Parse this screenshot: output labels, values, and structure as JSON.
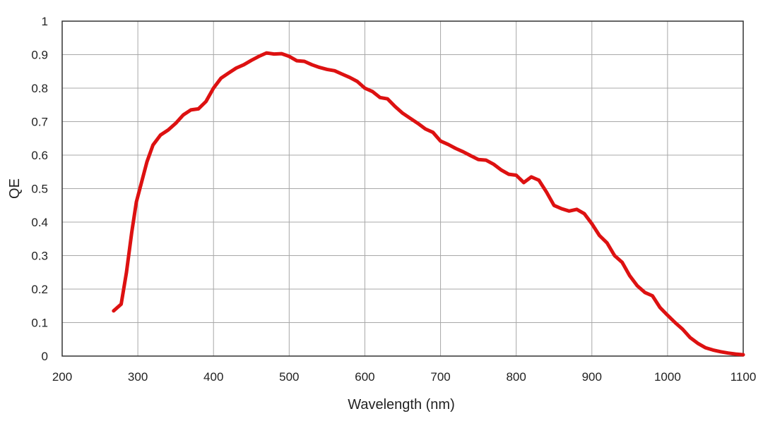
{
  "chart_data": {
    "type": "line",
    "title": "",
    "xlabel": "Wavelength (nm)",
    "ylabel": "QE",
    "xlim": [
      200,
      1100
    ],
    "ylim": [
      0,
      1
    ],
    "x_ticks": [
      "200",
      "300",
      "400",
      "500",
      "600",
      "700",
      "800",
      "900",
      "1000",
      "1100"
    ],
    "y_ticks": [
      "0",
      "0.1",
      "0.2",
      "0.3",
      "0.4",
      "0.5",
      "0.6",
      "0.7",
      "0.8",
      "0.9",
      "1"
    ],
    "grid": true,
    "legend": "none",
    "series": [
      {
        "color": "#dd1111",
        "points": [
          [
            268,
            0.135
          ],
          [
            278,
            0.155
          ],
          [
            285,
            0.25
          ],
          [
            292,
            0.37
          ],
          [
            298,
            0.46
          ],
          [
            305,
            0.52
          ],
          [
            312,
            0.58
          ],
          [
            320,
            0.63
          ],
          [
            330,
            0.66
          ],
          [
            340,
            0.675
          ],
          [
            350,
            0.695
          ],
          [
            360,
            0.72
          ],
          [
            370,
            0.735
          ],
          [
            380,
            0.738
          ],
          [
            390,
            0.76
          ],
          [
            400,
            0.8
          ],
          [
            410,
            0.83
          ],
          [
            420,
            0.845
          ],
          [
            430,
            0.86
          ],
          [
            440,
            0.87
          ],
          [
            450,
            0.883
          ],
          [
            460,
            0.895
          ],
          [
            470,
            0.905
          ],
          [
            480,
            0.902
          ],
          [
            490,
            0.903
          ],
          [
            500,
            0.895
          ],
          [
            510,
            0.882
          ],
          [
            520,
            0.88
          ],
          [
            530,
            0.87
          ],
          [
            540,
            0.862
          ],
          [
            550,
            0.856
          ],
          [
            560,
            0.852
          ],
          [
            570,
            0.842
          ],
          [
            580,
            0.832
          ],
          [
            590,
            0.82
          ],
          [
            600,
            0.8
          ],
          [
            610,
            0.79
          ],
          [
            620,
            0.772
          ],
          [
            630,
            0.768
          ],
          [
            640,
            0.745
          ],
          [
            650,
            0.725
          ],
          [
            660,
            0.71
          ],
          [
            670,
            0.695
          ],
          [
            680,
            0.678
          ],
          [
            690,
            0.668
          ],
          [
            700,
            0.642
          ],
          [
            710,
            0.632
          ],
          [
            720,
            0.62
          ],
          [
            730,
            0.61
          ],
          [
            740,
            0.598
          ],
          [
            750,
            0.587
          ],
          [
            760,
            0.585
          ],
          [
            770,
            0.573
          ],
          [
            780,
            0.556
          ],
          [
            790,
            0.543
          ],
          [
            800,
            0.54
          ],
          [
            810,
            0.518
          ],
          [
            820,
            0.535
          ],
          [
            830,
            0.525
          ],
          [
            840,
            0.49
          ],
          [
            850,
            0.45
          ],
          [
            860,
            0.44
          ],
          [
            870,
            0.433
          ],
          [
            880,
            0.438
          ],
          [
            890,
            0.425
          ],
          [
            900,
            0.395
          ],
          [
            910,
            0.36
          ],
          [
            920,
            0.338
          ],
          [
            930,
            0.3
          ],
          [
            940,
            0.28
          ],
          [
            950,
            0.24
          ],
          [
            960,
            0.21
          ],
          [
            970,
            0.19
          ],
          [
            980,
            0.18
          ],
          [
            990,
            0.145
          ],
          [
            1000,
            0.122
          ],
          [
            1010,
            0.1
          ],
          [
            1020,
            0.08
          ],
          [
            1030,
            0.055
          ],
          [
            1040,
            0.038
          ],
          [
            1050,
            0.025
          ],
          [
            1060,
            0.018
          ],
          [
            1070,
            0.013
          ],
          [
            1080,
            0.009
          ],
          [
            1090,
            0.006
          ],
          [
            1100,
            0.004
          ]
        ]
      }
    ]
  }
}
